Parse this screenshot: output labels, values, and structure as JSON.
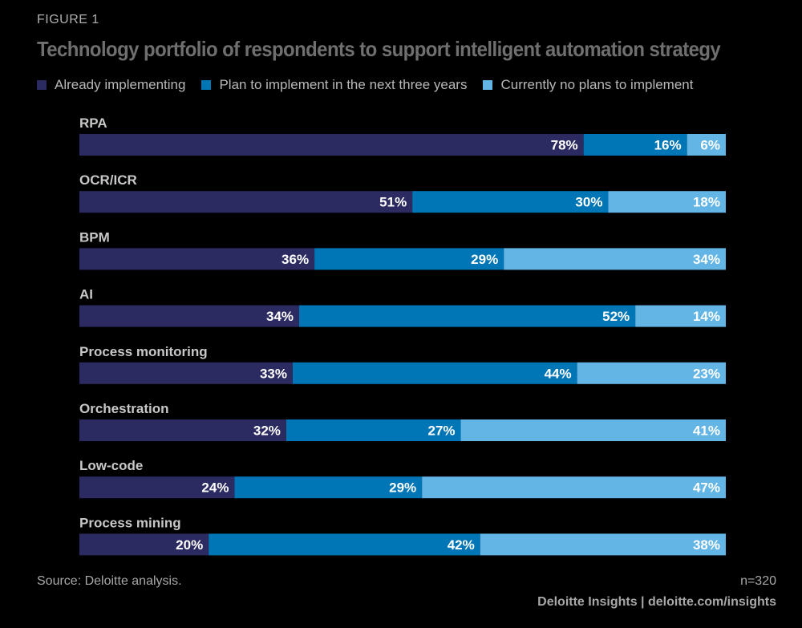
{
  "figure_label": "FIGURE 1",
  "colors": {
    "background": "#000000",
    "series": [
      "#2b2a61",
      "#0076b6",
      "#62b5e5"
    ]
  },
  "source": "Source: Deloitte analysis.",
  "sample_size": "n=320",
  "footer": "Deloitte Insights | deloitte.com/insights",
  "chart_data": {
    "type": "bar",
    "orientation": "horizontal",
    "stacked": true,
    "title": "Technology portfolio of respondents to support intelligent automation strategy",
    "categories": [
      "RPA",
      "OCR/ICR",
      "BPM",
      "AI",
      "Process monitoring",
      "Orchestration",
      "Low-code",
      "Process mining"
    ],
    "series": [
      {
        "name": "Already implementing",
        "values": [
          78,
          51,
          36,
          34,
          33,
          32,
          24,
          20
        ]
      },
      {
        "name": "Plan to implement in the next three years",
        "values": [
          16,
          30,
          29,
          52,
          44,
          27,
          29,
          42
        ]
      },
      {
        "name": "Currently no plans to implement",
        "values": [
          6,
          18,
          34,
          14,
          23,
          41,
          47,
          38
        ]
      }
    ],
    "value_suffix": "%",
    "legend_position": "top-left",
    "grid": false,
    "axes_visible": false
  }
}
